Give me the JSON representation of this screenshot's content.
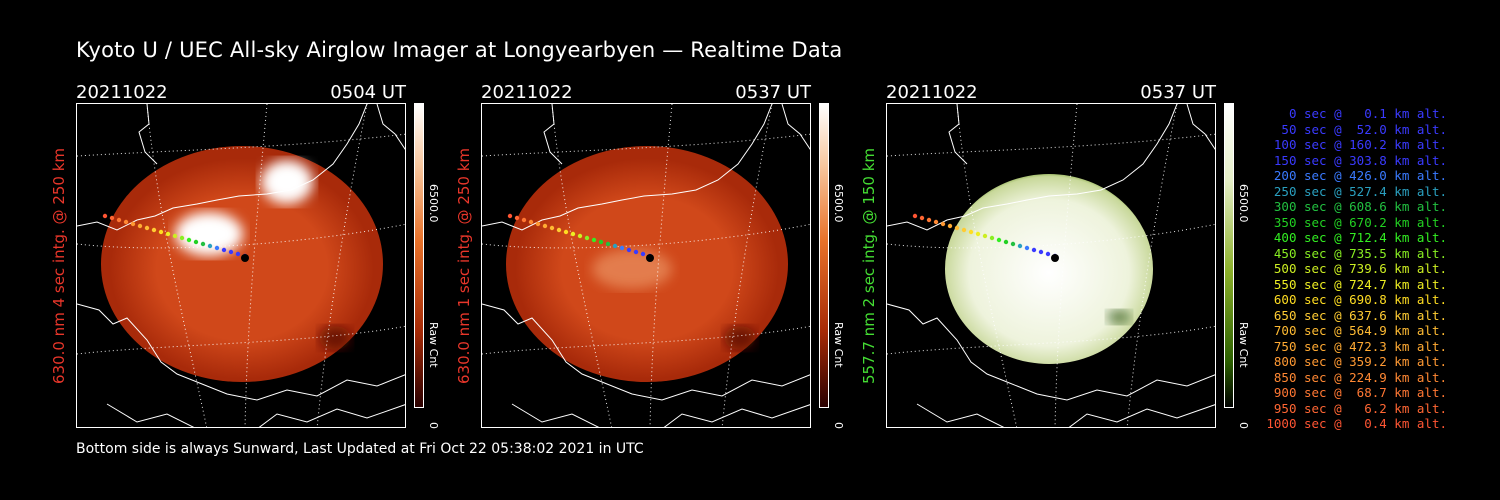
{
  "title": "Kyoto U / UEC All-sky Airglow Imager at Longyearbyen — Realtime Data",
  "footer": "Bottom side is always Sunward, Last Updated at Fri Oct 22 05:38:02 2021 in UTC",
  "panels": [
    {
      "date": "20211022",
      "time": "0504 UT",
      "ylabel": "630.0 nm 4 sec intg. @ 250 km",
      "ylabel_color": "#e8362a",
      "colorbar_max": "6500.0",
      "colorbar_min": "0",
      "colorbar_label": "Raw Cnt",
      "colormap": "red",
      "image_colors": [
        "#ffffff",
        "#f0a070",
        "#d0481a",
        "#a82a0a",
        "#5a0a00"
      ]
    },
    {
      "date": "20211022",
      "time": "0537 UT",
      "ylabel": "630.0 nm 1 sec intg. @ 250 km",
      "ylabel_color": "#e8362a",
      "colorbar_max": "6500.0",
      "colorbar_min": "0",
      "colorbar_label": "Raw Cnt",
      "colormap": "red",
      "image_colors": [
        "#ffffff",
        "#f0a070",
        "#d0481a",
        "#a82a0a",
        "#5a0a00"
      ]
    },
    {
      "date": "20211022",
      "time": "0537 UT",
      "ylabel": "557.7 nm 2 sec intg. @ 150 km",
      "ylabel_color": "#44dd33",
      "colorbar_max": "6500.0",
      "colorbar_min": "0",
      "colorbar_label": "Raw Cnt",
      "colormap": "green",
      "image_colors": [
        "#ffffff",
        "#eef3dc",
        "#c8d89a",
        "#5a8a10",
        "#1e4a00"
      ]
    }
  ],
  "legend": [
    {
      "text": "   0 sec @   0.1 km alt.",
      "color": "#3a3aff"
    },
    {
      "text": "  50 sec @  52.0 km alt.",
      "color": "#3a3aff"
    },
    {
      "text": " 100 sec @ 160.2 km alt.",
      "color": "#3a3aff"
    },
    {
      "text": " 150 sec @ 303.8 km alt.",
      "color": "#3a3aff"
    },
    {
      "text": " 200 sec @ 426.0 km alt.",
      "color": "#3a7aff"
    },
    {
      "text": " 250 sec @ 527.4 km alt.",
      "color": "#2aa0c0"
    },
    {
      "text": " 300 sec @ 608.6 km alt.",
      "color": "#22c040"
    },
    {
      "text": " 350 sec @ 670.2 km alt.",
      "color": "#22d022"
    },
    {
      "text": " 400 sec @ 712.4 km alt.",
      "color": "#33ee22"
    },
    {
      "text": " 450 sec @ 735.5 km alt.",
      "color": "#88ee22"
    },
    {
      "text": " 500 sec @ 739.6 km alt.",
      "color": "#ccee22"
    },
    {
      "text": " 550 sec @ 724.7 km alt.",
      "color": "#eeee22"
    },
    {
      "text": " 600 sec @ 690.8 km alt.",
      "color": "#ffdd22"
    },
    {
      "text": " 650 sec @ 637.6 km alt.",
      "color": "#ffcc33"
    },
    {
      "text": " 700 sec @ 564.9 km alt.",
      "color": "#ffbb33"
    },
    {
      "text": " 750 sec @ 472.3 km alt.",
      "color": "#ffaa33"
    },
    {
      "text": " 800 sec @ 359.2 km alt.",
      "color": "#ff9933"
    },
    {
      "text": " 850 sec @ 224.9 km alt.",
      "color": "#ff8833"
    },
    {
      "text": " 900 sec @  68.7 km alt.",
      "color": "#ff7733"
    },
    {
      "text": " 950 sec @   6.2 km alt.",
      "color": "#ff6633"
    },
    {
      "text": "1000 sec @   0.4 km alt.",
      "color": "#ff5533"
    }
  ]
}
